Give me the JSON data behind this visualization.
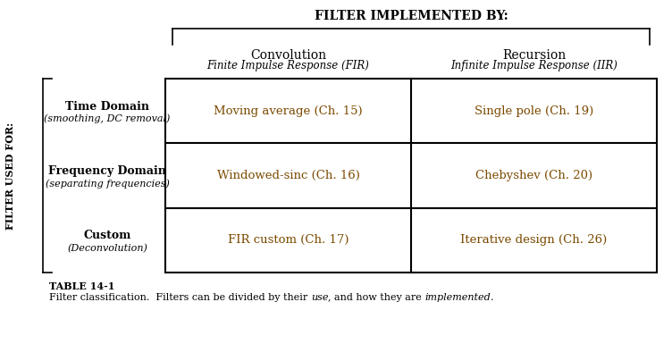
{
  "title": "FILTER IMPLEMENTED BY:",
  "col_headers": [
    "Convolution",
    "Recursion"
  ],
  "col_subheaders": [
    "Finite Impulse Response (FIR)",
    "Infinite Impulse Response (IIR)"
  ],
  "row_headers": [
    [
      "Time Domain",
      "(smoothing, DC removal)"
    ],
    [
      "Frequency Domain",
      "(separating frequencies)"
    ],
    [
      "Custom",
      "(Deconvolution)"
    ]
  ],
  "cells": [
    [
      "Moving average (Ch. 15)",
      "Single pole (Ch. 19)"
    ],
    [
      "Windowed-sinc (Ch. 16)",
      "Chebyshev (Ch. 20)"
    ],
    [
      "FIR custom (Ch. 17)",
      "Iterative design (Ch. 26)"
    ]
  ],
  "y_label": "FILTER USED FOR:",
  "caption_bold": "TABLE 14-1",
  "caption_normal": "Filter classification.  Filters can be divided by their ",
  "caption_italic1": "use",
  "caption_mid": ", and how they are ",
  "caption_italic2": "implemented",
  "caption_end": ".",
  "bg_color": "#ffffff",
  "text_color": "#000000",
  "cell_text_color": "#7b4a00",
  "header_text_color": "#000000",
  "font_family": "serif",
  "title_fontsize": 10,
  "col_header_fontsize": 10,
  "col_subheader_fontsize": 8.5,
  "row_header_fontsize": 9,
  "row_subheader_fontsize": 8,
  "cell_fontsize": 9.5,
  "ylabel_fontsize": 8,
  "caption_fontsize": 8
}
